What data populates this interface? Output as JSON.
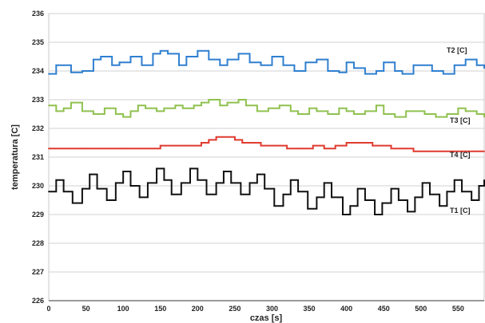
{
  "chart_data": {
    "type": "line",
    "xlabel": "czas [s]",
    "ylabel": "temperatura [C]",
    "xlim": [
      0,
      585
    ],
    "ylim": [
      226,
      236
    ],
    "xticks": [
      0,
      50,
      100,
      150,
      200,
      250,
      300,
      350,
      400,
      450,
      500,
      550
    ],
    "yticks": [
      226,
      227,
      228,
      229,
      230,
      231,
      232,
      233,
      234,
      235,
      236
    ],
    "grid": true,
    "legend": "inline labels at right end of each series",
    "series": [
      {
        "name": "T2 [C]",
        "color": "#2f7fd0",
        "points": [
          [
            0,
            233.9
          ],
          [
            10,
            234.2
          ],
          [
            20,
            234.2
          ],
          [
            30,
            233.95
          ],
          [
            45,
            234.0
          ],
          [
            60,
            234.4
          ],
          [
            70,
            234.5
          ],
          [
            85,
            234.2
          ],
          [
            95,
            234.3
          ],
          [
            110,
            234.5
          ],
          [
            125,
            234.2
          ],
          [
            140,
            234.6
          ],
          [
            150,
            234.7
          ],
          [
            160,
            234.6
          ],
          [
            175,
            234.2
          ],
          [
            185,
            234.5
          ],
          [
            200,
            234.7
          ],
          [
            215,
            234.4
          ],
          [
            230,
            234.2
          ],
          [
            240,
            234.4
          ],
          [
            255,
            234.6
          ],
          [
            270,
            234.3
          ],
          [
            285,
            234.2
          ],
          [
            300,
            234.5
          ],
          [
            315,
            234.2
          ],
          [
            330,
            234.0
          ],
          [
            345,
            234.3
          ],
          [
            360,
            234.4
          ],
          [
            375,
            234.0
          ],
          [
            390,
            233.95
          ],
          [
            400,
            234.3
          ],
          [
            410,
            234.1
          ],
          [
            425,
            233.9
          ],
          [
            440,
            234.0
          ],
          [
            450,
            234.3
          ],
          [
            465,
            234.0
          ],
          [
            475,
            233.9
          ],
          [
            490,
            234.2
          ],
          [
            505,
            234.2
          ],
          [
            515,
            234.0
          ],
          [
            530,
            233.9
          ],
          [
            545,
            234.2
          ],
          [
            560,
            234.4
          ],
          [
            575,
            234.2
          ],
          [
            585,
            234.1
          ]
        ]
      },
      {
        "name": "T3 [C]",
        "color": "#8fc14f",
        "points": [
          [
            0,
            232.8
          ],
          [
            10,
            232.6
          ],
          [
            20,
            232.7
          ],
          [
            30,
            232.9
          ],
          [
            45,
            232.6
          ],
          [
            60,
            232.5
          ],
          [
            75,
            232.7
          ],
          [
            90,
            232.5
          ],
          [
            100,
            232.4
          ],
          [
            110,
            232.6
          ],
          [
            120,
            232.8
          ],
          [
            130,
            232.7
          ],
          [
            145,
            232.6
          ],
          [
            155,
            232.7
          ],
          [
            170,
            232.8
          ],
          [
            180,
            232.7
          ],
          [
            195,
            232.8
          ],
          [
            205,
            232.9
          ],
          [
            215,
            233.0
          ],
          [
            230,
            232.8
          ],
          [
            240,
            232.9
          ],
          [
            255,
            233.0
          ],
          [
            265,
            232.8
          ],
          [
            280,
            232.6
          ],
          [
            295,
            232.7
          ],
          [
            310,
            232.8
          ],
          [
            325,
            232.6
          ],
          [
            335,
            232.5
          ],
          [
            350,
            232.7
          ],
          [
            360,
            232.6
          ],
          [
            375,
            232.5
          ],
          [
            390,
            232.7
          ],
          [
            400,
            232.6
          ],
          [
            410,
            232.5
          ],
          [
            425,
            232.6
          ],
          [
            440,
            232.8
          ],
          [
            450,
            232.5
          ],
          [
            465,
            232.4
          ],
          [
            480,
            232.6
          ],
          [
            490,
            232.6
          ],
          [
            505,
            232.5
          ],
          [
            520,
            232.4
          ],
          [
            535,
            232.5
          ],
          [
            550,
            232.7
          ],
          [
            560,
            232.6
          ],
          [
            575,
            232.5
          ],
          [
            585,
            232.4
          ]
        ]
      },
      {
        "name": "T4 [C]",
        "color": "#e03a2f",
        "points": [
          [
            0,
            231.3
          ],
          [
            50,
            231.3
          ],
          [
            100,
            231.3
          ],
          [
            150,
            231.4
          ],
          [
            190,
            231.4
          ],
          [
            205,
            231.5
          ],
          [
            215,
            231.6
          ],
          [
            225,
            231.7
          ],
          [
            240,
            231.7
          ],
          [
            250,
            231.6
          ],
          [
            260,
            231.5
          ],
          [
            270,
            231.5
          ],
          [
            285,
            231.4
          ],
          [
            300,
            231.4
          ],
          [
            320,
            231.3
          ],
          [
            340,
            231.3
          ],
          [
            355,
            231.4
          ],
          [
            370,
            231.3
          ],
          [
            385,
            231.4
          ],
          [
            400,
            231.5
          ],
          [
            420,
            231.5
          ],
          [
            435,
            231.4
          ],
          [
            450,
            231.4
          ],
          [
            460,
            231.3
          ],
          [
            475,
            231.3
          ],
          [
            490,
            231.2
          ],
          [
            510,
            231.2
          ],
          [
            535,
            231.2
          ],
          [
            560,
            231.2
          ],
          [
            585,
            231.2
          ]
        ]
      },
      {
        "name": "T1 [C]",
        "color": "#111111",
        "points": [
          [
            0,
            229.8
          ],
          [
            10,
            230.2
          ],
          [
            20,
            229.8
          ],
          [
            32,
            229.4
          ],
          [
            45,
            229.9
          ],
          [
            55,
            230.4
          ],
          [
            65,
            229.9
          ],
          [
            78,
            229.5
          ],
          [
            90,
            230.1
          ],
          [
            100,
            230.5
          ],
          [
            110,
            230.0
          ],
          [
            122,
            229.6
          ],
          [
            133,
            230.1
          ],
          [
            145,
            230.6
          ],
          [
            155,
            230.2
          ],
          [
            165,
            229.7
          ],
          [
            178,
            230.1
          ],
          [
            190,
            230.6
          ],
          [
            200,
            230.2
          ],
          [
            212,
            229.7
          ],
          [
            225,
            230.1
          ],
          [
            235,
            230.5
          ],
          [
            245,
            230.1
          ],
          [
            258,
            229.7
          ],
          [
            270,
            230.1
          ],
          [
            280,
            230.4
          ],
          [
            290,
            229.9
          ],
          [
            303,
            229.3
          ],
          [
            315,
            229.7
          ],
          [
            325,
            230.2
          ],
          [
            335,
            229.8
          ],
          [
            348,
            229.2
          ],
          [
            360,
            229.6
          ],
          [
            370,
            230.1
          ],
          [
            380,
            229.6
          ],
          [
            395,
            229.0
          ],
          [
            405,
            229.3
          ],
          [
            415,
            229.9
          ],
          [
            425,
            229.5
          ],
          [
            438,
            229.0
          ],
          [
            448,
            229.4
          ],
          [
            460,
            229.9
          ],
          [
            470,
            229.5
          ],
          [
            482,
            229.1
          ],
          [
            492,
            229.6
          ],
          [
            502,
            230.1
          ],
          [
            512,
            229.7
          ],
          [
            525,
            229.3
          ],
          [
            535,
            229.8
          ],
          [
            545,
            230.2
          ],
          [
            555,
            229.8
          ],
          [
            568,
            229.5
          ],
          [
            578,
            230.0
          ],
          [
            585,
            230.2
          ]
        ]
      }
    ]
  }
}
